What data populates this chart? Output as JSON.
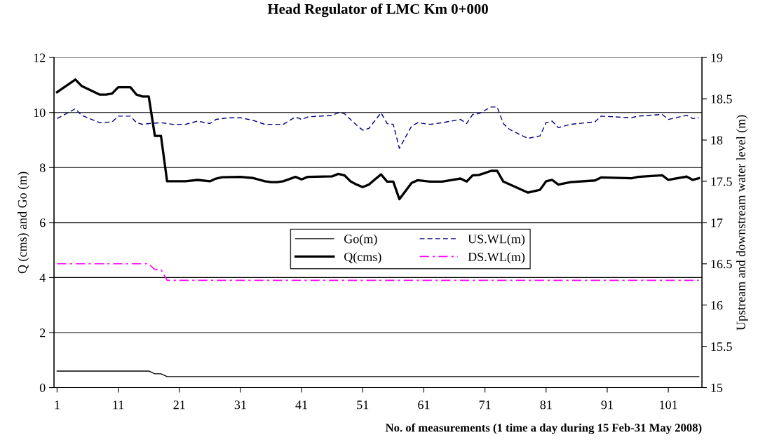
{
  "chart_data": {
    "type": "line",
    "title": "Head Regulator of LMC Km 0+000",
    "xlabel": "No. of measurements (1 time a day during 15 Feb-31 May 2008)",
    "ylabel": "Q (cms) and Go (m)",
    "y2label": "Upstream and downstream water level (m)",
    "xlim": [
      0.5,
      106.5
    ],
    "xticks": [
      1,
      11,
      21,
      31,
      41,
      51,
      61,
      71,
      81,
      91,
      101
    ],
    "ylim": [
      0,
      12
    ],
    "yticks": [
      0,
      2,
      4,
      6,
      8,
      10,
      12
    ],
    "y2lim": [
      15,
      19
    ],
    "y2ticks": [
      15,
      15.5,
      16,
      16.5,
      17,
      17.5,
      18,
      18.5,
      19
    ],
    "grid": "y",
    "legend": "center",
    "marker": "none",
    "series": [
      {
        "name": "Go(m)",
        "color": "#000000",
        "line_style": "solid",
        "x": [
          1,
          16,
          17,
          18,
          19,
          106
        ],
        "values": [
          0.6,
          0.6,
          0.5,
          0.5,
          0.4,
          0.4
        ]
      },
      {
        "name": "Q(cms)",
        "color": "#000000",
        "line_style": "solid",
        "x": [
          1,
          4,
          5,
          8,
          9,
          10,
          11,
          13,
          14,
          15,
          16,
          17,
          18,
          19,
          22,
          24,
          26,
          27,
          28,
          31,
          33,
          35,
          36,
          37,
          38,
          40,
          41,
          42,
          46,
          47,
          48,
          49,
          50,
          51,
          52,
          53,
          54,
          55,
          56,
          57,
          59,
          60,
          62,
          64,
          67,
          68,
          69,
          70,
          71,
          72,
          73,
          74,
          78,
          80,
          81,
          82,
          83,
          85,
          89,
          90,
          95,
          96,
          100,
          101,
          104,
          105,
          106
        ],
        "values": [
          10.74,
          11.2,
          10.97,
          10.65,
          10.65,
          10.69,
          10.92,
          10.92,
          10.65,
          10.58,
          10.58,
          9.15,
          9.15,
          7.5,
          7.5,
          7.55,
          7.5,
          7.6,
          7.65,
          7.66,
          7.62,
          7.5,
          7.47,
          7.47,
          7.5,
          7.66,
          7.57,
          7.66,
          7.68,
          7.77,
          7.72,
          7.5,
          7.38,
          7.29,
          7.38,
          7.57,
          7.75,
          7.49,
          7.49,
          6.85,
          7.44,
          7.54,
          7.49,
          7.49,
          7.6,
          7.49,
          7.72,
          7.73,
          7.8,
          7.88,
          7.88,
          7.49,
          7.09,
          7.19,
          7.5,
          7.55,
          7.38,
          7.47,
          7.53,
          7.64,
          7.61,
          7.66,
          7.72,
          7.55,
          7.67,
          7.55,
          7.61
        ]
      },
      {
        "name": "US.WL(m)",
        "color": "#000080",
        "line_style": "dashed",
        "axis": "y2",
        "x": [
          1,
          4,
          5,
          8,
          10,
          11,
          13,
          14,
          15,
          16,
          18,
          20,
          22,
          24,
          26,
          27,
          29,
          31,
          33,
          35,
          38,
          40,
          41,
          42,
          46,
          47,
          48,
          50,
          51,
          52,
          54,
          55,
          56,
          57,
          59,
          60,
          62,
          64,
          67,
          68,
          69,
          70,
          72,
          73,
          74,
          75,
          78,
          80,
          81,
          82,
          83,
          85,
          89,
          90,
          95,
          96,
          100,
          101,
          104,
          105,
          106
        ],
        "values": [
          18.26,
          18.38,
          18.3,
          18.21,
          18.22,
          18.29,
          18.29,
          18.21,
          18.19,
          18.2,
          18.21,
          18.19,
          18.19,
          18.23,
          18.2,
          18.25,
          18.27,
          18.27,
          18.24,
          18.19,
          18.19,
          18.28,
          18.25,
          18.28,
          18.3,
          18.33,
          18.32,
          18.18,
          18.12,
          18.14,
          18.33,
          18.2,
          18.19,
          17.9,
          18.17,
          18.21,
          18.19,
          18.21,
          18.25,
          18.2,
          18.31,
          18.32,
          18.4,
          18.4,
          18.2,
          18.13,
          18.02,
          18.05,
          18.21,
          18.23,
          18.15,
          18.19,
          18.22,
          18.29,
          18.27,
          18.29,
          18.31,
          18.25,
          18.3,
          18.26,
          18.27
        ]
      },
      {
        "name": "DS.WL(m)",
        "color": "#ff00ff",
        "line_style": "dashdot",
        "axis": "y2",
        "x": [
          1,
          16,
          17,
          18,
          19,
          106
        ],
        "values": [
          16.5,
          16.5,
          16.43,
          16.43,
          16.3,
          16.3
        ]
      }
    ]
  }
}
